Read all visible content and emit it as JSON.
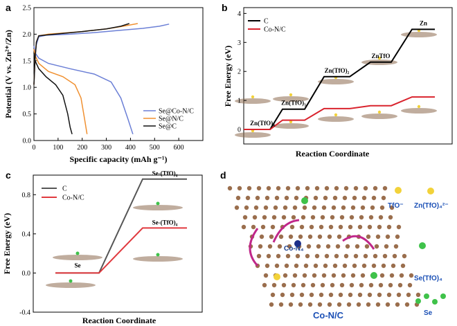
{
  "chart_data": [
    {
      "panel": "a",
      "type": "line",
      "xlabel": "Specific capacity (mAh g⁻¹)",
      "ylabel": "Potential (V vs. Zn²⁺/Zn)",
      "xlim": [
        0,
        700
      ],
      "ylim": [
        0,
        2.5
      ],
      "xticks": [
        "0",
        "100",
        "200",
        "300",
        "400",
        "500",
        "600"
      ],
      "yticks": [
        "0.0",
        "0.5",
        "1.0",
        "1.5",
        "2.0",
        "2.5"
      ],
      "legend_position": "bottom-right",
      "series": [
        {
          "name": "Se@Co-N/C",
          "color": "#6b7fd6",
          "charge": [
            [
              0,
              1.05
            ],
            [
              5,
              1.55
            ],
            [
              10,
              1.8
            ],
            [
              20,
              1.95
            ],
            [
              50,
              1.98
            ],
            [
              150,
              2.0
            ],
            [
              250,
              2.03
            ],
            [
              350,
              2.07
            ],
            [
              450,
              2.11
            ],
            [
              520,
              2.15
            ],
            [
              560,
              2.19
            ]
          ],
          "discharge": [
            [
              0,
              1.78
            ],
            [
              5,
              1.65
            ],
            [
              20,
              1.55
            ],
            [
              60,
              1.45
            ],
            [
              150,
              1.35
            ],
            [
              250,
              1.25
            ],
            [
              320,
              1.1
            ],
            [
              360,
              0.8
            ],
            [
              390,
              0.4
            ],
            [
              410,
              0.12
            ]
          ]
        },
        {
          "name": "Se@N/C",
          "color": "#f09030",
          "charge": [
            [
              0,
              1.05
            ],
            [
              5,
              1.55
            ],
            [
              10,
              1.85
            ],
            [
              20,
              1.97
            ],
            [
              60,
              2.0
            ],
            [
              200,
              2.05
            ],
            [
              300,
              2.1
            ],
            [
              370,
              2.15
            ],
            [
              430,
              2.2
            ]
          ],
          "discharge": [
            [
              0,
              1.72
            ],
            [
              5,
              1.6
            ],
            [
              20,
              1.45
            ],
            [
              60,
              1.3
            ],
            [
              120,
              1.2
            ],
            [
              170,
              1.05
            ],
            [
              195,
              0.8
            ],
            [
              210,
              0.4
            ],
            [
              220,
              0.12
            ]
          ]
        },
        {
          "name": "Se@C",
          "color": "#111111",
          "charge": [
            [
              0,
              1.05
            ],
            [
              5,
              1.55
            ],
            [
              10,
              1.85
            ],
            [
              20,
              1.97
            ],
            [
              60,
              1.99
            ],
            [
              200,
              2.05
            ],
            [
              300,
              2.1
            ],
            [
              360,
              2.15
            ],
            [
              395,
              2.2
            ]
          ],
          "discharge": [
            [
              0,
              1.65
            ],
            [
              5,
              1.5
            ],
            [
              20,
              1.35
            ],
            [
              50,
              1.2
            ],
            [
              90,
              1.05
            ],
            [
              120,
              0.85
            ],
            [
              140,
              0.5
            ],
            [
              150,
              0.25
            ],
            [
              158,
              0.12
            ]
          ]
        }
      ]
    },
    {
      "panel": "b",
      "type": "line",
      "subtype": "energy-profile",
      "xlabel": "Reaction Coordinate",
      "ylabel": "Free Energy (eV)",
      "ylim": [
        -0.5,
        4.2
      ],
      "yticks": [
        "0",
        "1",
        "2",
        "3",
        "4"
      ],
      "legend_position": "top-left",
      "states": [
        "Zn(TfO)₄",
        "Zn(TfO)₃",
        "Zn(TfO)₂",
        "ZnTfO",
        "Zn"
      ],
      "series": [
        {
          "name": "C",
          "color": "#000000",
          "values": [
            0.0,
            0.7,
            1.82,
            2.32,
            3.45
          ]
        },
        {
          "name": "Co-N/C",
          "color": "#d9232d",
          "values": [
            0.0,
            0.32,
            0.72,
            0.82,
            1.12
          ]
        }
      ]
    },
    {
      "panel": "c",
      "type": "line",
      "subtype": "energy-profile",
      "xlabel": "Reaction Coordinate",
      "ylabel": "Free Energy (eV)",
      "ylim": [
        -0.4,
        1.0
      ],
      "yticks": [
        "-0.4",
        "0.0",
        "0.4",
        "0.8"
      ],
      "legend_position": "top-left",
      "states": [
        "Se",
        "Se-(TfO)₄"
      ],
      "state_labels": [
        "Se",
        "Se-(TfO)₄",
        "Se-(TfO)₄"
      ],
      "series": [
        {
          "name": "C",
          "color": "#555555",
          "values": [
            0.0,
            0.96
          ]
        },
        {
          "name": "Co-N/C",
          "color": "#e0393e",
          "values": [
            0.0,
            0.46
          ]
        }
      ]
    }
  ],
  "panels": {
    "a": "a",
    "b": "b",
    "c": "c",
    "d": "d"
  },
  "diagram_d": {
    "labels": {
      "tfo": "TfO⁻",
      "zn_tfo4": "Zn(TfO)₄²⁻",
      "se_tfo4": "Se(TfO)₄",
      "se": "Se",
      "con4": "Co-N₄",
      "support": "Co-N/C"
    }
  }
}
